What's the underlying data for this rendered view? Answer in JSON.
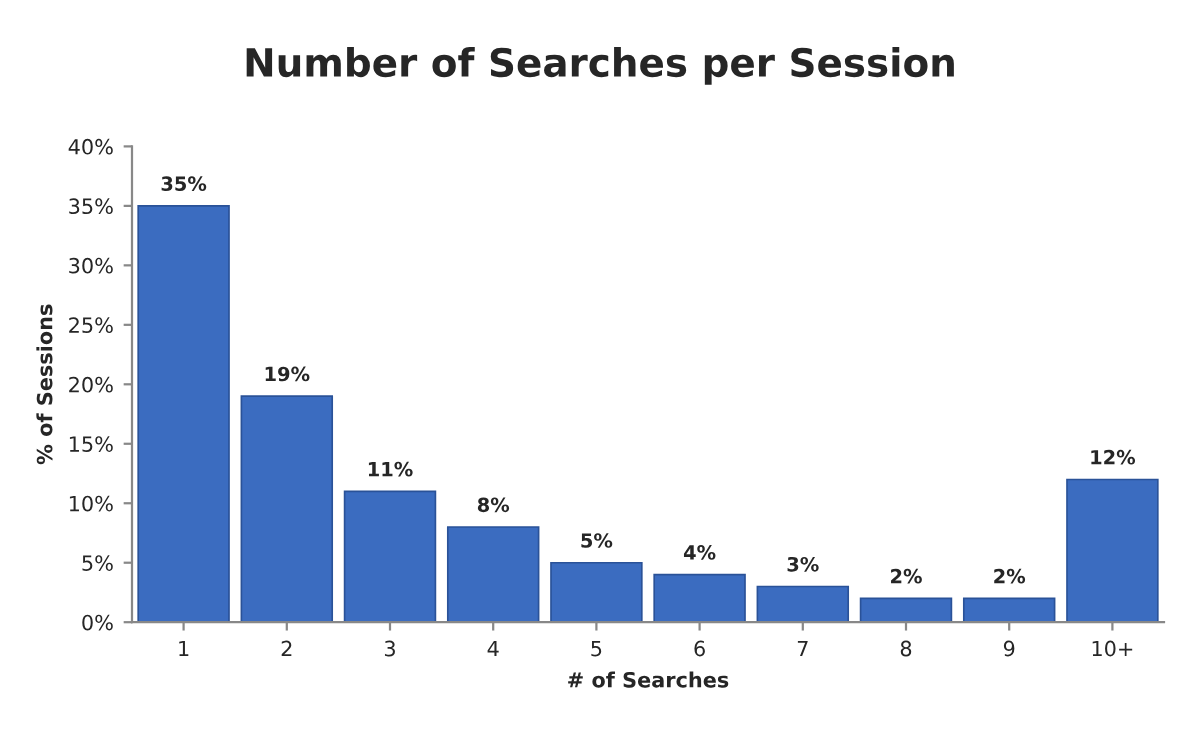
{
  "chart_data": {
    "type": "bar",
    "title": "Number of Searches per Session",
    "xlabel": "# of Searches",
    "ylabel": "% of Sessions",
    "categories": [
      "1",
      "2",
      "3",
      "4",
      "5",
      "6",
      "7",
      "8",
      "9",
      "10+"
    ],
    "values": [
      35,
      19,
      11,
      8,
      5,
      4,
      3,
      2,
      2,
      12
    ],
    "value_labels": [
      "35%",
      "19%",
      "11%",
      "8%",
      "5%",
      "4%",
      "3%",
      "2%",
      "2%",
      "12%"
    ],
    "color": "#3b6cc0",
    "ylim": [
      0,
      40
    ],
    "yticks": [
      {
        "value": 0,
        "label": "0%"
      },
      {
        "value": 5,
        "label": "5%"
      },
      {
        "value": 10,
        "label": "10%"
      },
      {
        "value": 15,
        "label": "15%"
      },
      {
        "value": 20,
        "label": "20%"
      },
      {
        "value": 25,
        "label": "25%"
      },
      {
        "value": 30,
        "label": "30%"
      },
      {
        "value": 35,
        "label": "35%"
      },
      {
        "value": 40,
        "label": "40%"
      }
    ],
    "grid": false
  }
}
